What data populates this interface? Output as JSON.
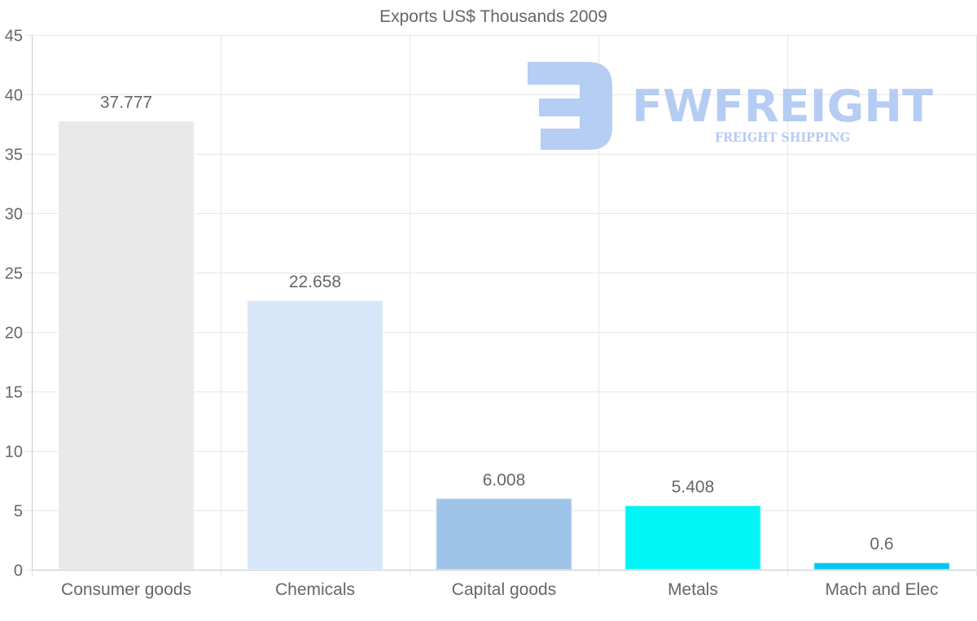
{
  "chart_data": {
    "type": "bar",
    "title": "Exports US$ Thousands 2009",
    "xlabel": "",
    "ylabel": "",
    "categories": [
      "Consumer goods",
      "Chemicals",
      "Capital goods",
      "Metals",
      "Mach and Elec"
    ],
    "values": [
      37.777,
      22.658,
      6.008,
      5.408,
      0.6
    ],
    "value_labels": [
      "37.777",
      "22.658",
      "6.008",
      "5.408",
      "0.6"
    ],
    "colors": [
      "#e8e8e8",
      "#d6e6f8",
      "#9dc3e8",
      "#00f5f7",
      "#00c4f2"
    ],
    "ylim": [
      0,
      45
    ],
    "yticks": [
      0,
      5,
      10,
      15,
      20,
      25,
      30,
      35,
      40,
      45
    ],
    "grid": true,
    "legend": "none"
  },
  "watermark": {
    "brand": "FWFREIGHT",
    "tagline": "FREIGHT SHIPPING",
    "color": "#a9c4f2",
    "icon": "fwfreight-logo-icon"
  }
}
